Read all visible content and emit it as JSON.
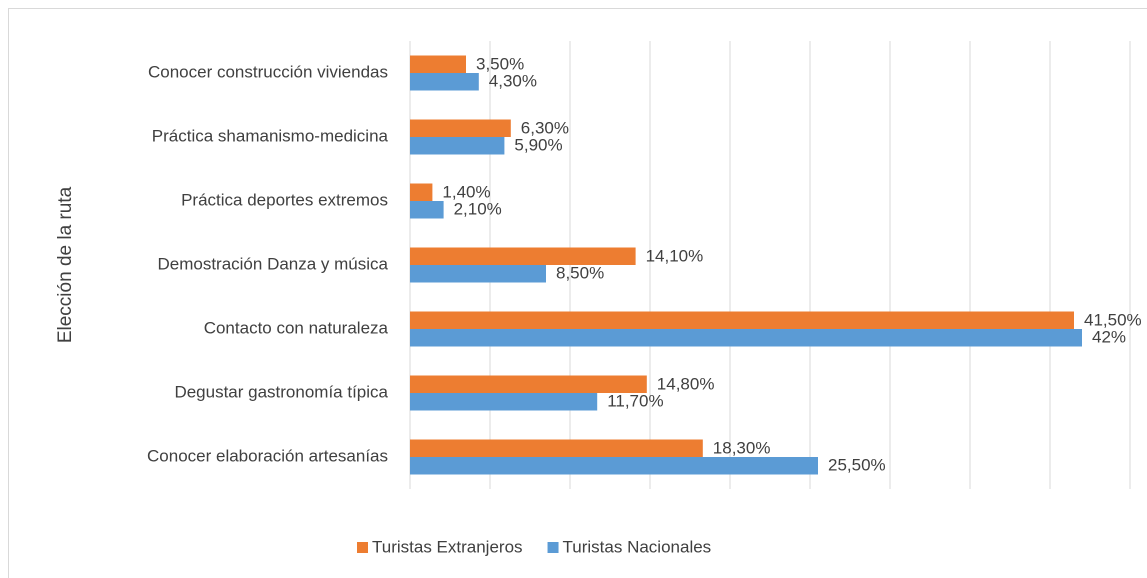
{
  "chart_data": {
    "type": "barh",
    "y_label": "Elección de la ruta",
    "categories": [
      "Conocer construcción viviendas",
      "Práctica shamanismo-medicina",
      "Práctica deportes extremos",
      "Demostración Danza y música",
      "Contacto con naturaleza",
      "Degustar gastronomía típica",
      "Conocer elaboración artesanías"
    ],
    "series": [
      {
        "name": "Turistas Extranjeros",
        "color": "#ed7d31",
        "values": [
          3.5,
          6.3,
          1.4,
          14.1,
          41.5,
          14.8,
          18.3
        ],
        "value_labels": [
          "3,50%",
          "6,30%",
          "1,40%",
          "14,10%",
          "41,50%",
          "14,80%",
          "18,30%"
        ]
      },
      {
        "name": "Turistas Nacionales",
        "color": "#5b9bd5",
        "values": [
          4.3,
          5.9,
          2.1,
          8.5,
          42,
          11.7,
          25.5
        ],
        "value_labels": [
          "4,30%",
          "5,90%",
          "2,10%",
          "8,50%",
          "42%",
          "11,70%",
          "25,50%"
        ]
      }
    ],
    "xlim": [
      0,
      45
    ],
    "xticks": [
      0,
      5,
      10,
      15,
      20,
      25,
      30,
      35,
      40,
      45
    ],
    "grid": true,
    "legend": "bottom"
  }
}
